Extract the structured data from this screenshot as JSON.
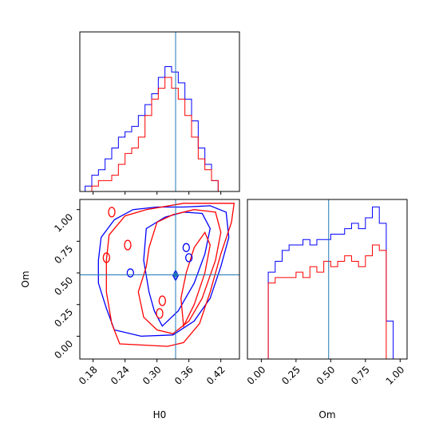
{
  "chart_data": {
    "type": "corner",
    "parameters": [
      "H0",
      "Om"
    ],
    "truth": {
      "H0": 0.335,
      "Om": 0.485
    },
    "truth_color": "#1f77b4",
    "series": [
      {
        "color": "#0000ff"
      },
      {
        "color": "#ff0000"
      }
    ],
    "h0_hist": {
      "xlim": [
        0.155,
        0.455
      ],
      "bin_width": 0.0125,
      "bins_start": 0.165,
      "blue": [
        1,
        3,
        4,
        6,
        8,
        10,
        11,
        12,
        14,
        16,
        18,
        21,
        23,
        22,
        20,
        17,
        13,
        8,
        5,
        2,
        0,
        0
      ],
      "red": [
        0,
        1,
        2,
        2,
        3,
        5,
        7,
        8,
        10,
        14,
        17,
        19,
        21,
        19,
        17,
        14,
        10,
        6,
        4,
        2,
        0,
        0
      ]
    },
    "om_hist": {
      "xlim": [
        -0.1,
        1.05
      ],
      "bin_width": 0.05,
      "bins_start": -0.1,
      "blue": [
        0,
        0,
        0,
        16,
        18,
        20,
        21,
        21,
        22,
        21,
        22,
        22,
        23,
        23,
        24,
        25,
        24,
        26,
        28,
        25,
        7
      ],
      "red": [
        0,
        0,
        0,
        14,
        15,
        15,
        15,
        16,
        15,
        17,
        16,
        18,
        17,
        18,
        19,
        18,
        17,
        19,
        21,
        20,
        0
      ]
    },
    "joint": {
      "xlim": [
        0.155,
        0.455
      ],
      "ylim": [
        -0.18,
        1.08
      ],
      "x_ticks": [
        0.18,
        0.24,
        0.3,
        0.36,
        0.42
      ],
      "x_tick_labels": [
        "0.18",
        "0.24",
        "0.30",
        "0.36",
        "0.42"
      ],
      "y_ticks": [
        0.0,
        0.25,
        0.5,
        0.75,
        1.0
      ],
      "y_tick_labels": [
        "0.00",
        "0.25",
        "0.50",
        "0.75",
        "1.00"
      ],
      "xlabel": "H0",
      "ylabel": "Om",
      "blue_contours": [
        [
          [
            0.27,
            0.0
          ],
          [
            0.33,
            0.01
          ],
          [
            0.37,
            0.12
          ],
          [
            0.4,
            0.3
          ],
          [
            0.42,
            0.55
          ],
          [
            0.435,
            0.78
          ],
          [
            0.43,
            0.98
          ],
          [
            0.4,
            1.03
          ],
          [
            0.35,
            1.02
          ],
          [
            0.3,
            1.02
          ],
          [
            0.255,
            1.0
          ],
          [
            0.22,
            0.92
          ],
          [
            0.195,
            0.78
          ],
          [
            0.19,
            0.6
          ],
          [
            0.19,
            0.42
          ],
          [
            0.205,
            0.22
          ],
          [
            0.22,
            0.05
          ],
          [
            0.27,
            0.0
          ]
        ],
        [
          [
            0.31,
            0.08
          ],
          [
            0.34,
            0.2
          ],
          [
            0.37,
            0.42
          ],
          [
            0.39,
            0.65
          ],
          [
            0.4,
            0.85
          ],
          [
            0.385,
            0.97
          ],
          [
            0.35,
            0.98
          ],
          [
            0.315,
            0.94
          ],
          [
            0.28,
            0.85
          ],
          [
            0.275,
            0.6
          ],
          [
            0.285,
            0.35
          ],
          [
            0.295,
            0.2
          ],
          [
            0.31,
            0.08
          ]
        ],
        [
          [
            0.335,
            0.44
          ],
          [
            0.34,
            0.48
          ],
          [
            0.335,
            0.52
          ],
          [
            0.33,
            0.48
          ],
          [
            0.335,
            0.44
          ]
        ]
      ],
      "red_contours": [
        [
          [
            0.23,
            -0.06
          ],
          [
            0.32,
            -0.08
          ],
          [
            0.35,
            -0.05
          ],
          [
            0.38,
            0.1
          ],
          [
            0.4,
            0.35
          ],
          [
            0.42,
            0.65
          ],
          [
            0.44,
            0.9
          ],
          [
            0.445,
            1.05
          ],
          [
            0.4,
            1.05
          ],
          [
            0.35,
            1.05
          ],
          [
            0.28,
            1.0
          ],
          [
            0.24,
            0.95
          ],
          [
            0.21,
            0.8
          ],
          [
            0.205,
            0.6
          ],
          [
            0.205,
            0.35
          ],
          [
            0.215,
            0.1
          ],
          [
            0.23,
            -0.06
          ]
        ],
        [
          [
            0.33,
            0.02
          ],
          [
            0.36,
            0.12
          ],
          [
            0.385,
            0.3
          ],
          [
            0.41,
            0.6
          ],
          [
            0.42,
            0.82
          ],
          [
            0.41,
            0.98
          ],
          [
            0.37,
            1.0
          ],
          [
            0.33,
            0.96
          ],
          [
            0.3,
            0.9
          ],
          [
            0.285,
            0.7
          ],
          [
            0.28,
            0.55
          ],
          [
            0.265,
            0.35
          ],
          [
            0.275,
            0.15
          ],
          [
            0.3,
            0.05
          ],
          [
            0.33,
            0.02
          ]
        ],
        [
          [
            0.35,
            0.08
          ],
          [
            0.37,
            0.25
          ],
          [
            0.39,
            0.5
          ],
          [
            0.4,
            0.72
          ],
          [
            0.39,
            0.82
          ],
          [
            0.37,
            0.7
          ],
          [
            0.355,
            0.5
          ],
          [
            0.345,
            0.3
          ],
          [
            0.35,
            0.08
          ]
        ]
      ]
    },
    "om_xlabel": "Om",
    "om_x_ticks": [
      0.0,
      0.25,
      0.5,
      0.75,
      1.0
    ],
    "om_x_tick_labels": [
      "0.00",
      "0.25",
      "0.50",
      "0.75",
      "1.00"
    ]
  }
}
